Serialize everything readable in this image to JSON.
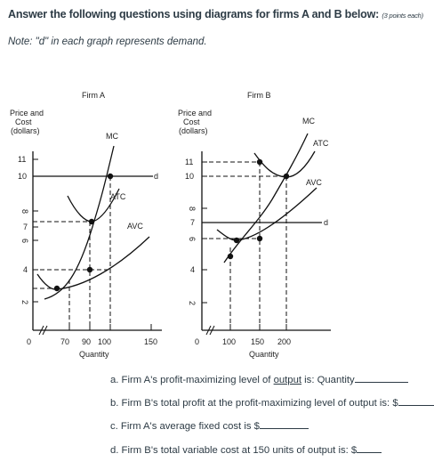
{
  "header": {
    "title": "Answer the following questions using diagrams for firms A and B below:",
    "points": "(3 points each)",
    "note": "Note: \"d\" in each graph represents demand."
  },
  "graphs": {
    "firm_a": {
      "title": "Firm A",
      "ylabel": [
        "Price  and",
        "Cost",
        "(dollars)"
      ],
      "xlabel": "Quantity",
      "origin_label": "0",
      "y_ticks": [
        "11",
        "10",
        "8",
        "7",
        "6",
        "4",
        "2"
      ],
      "x_ticks": [
        "70",
        "90",
        "100",
        "150"
      ],
      "curve_labels": {
        "mc": "MC",
        "atc": "ATC",
        "avc": "AVC",
        "d": "d"
      }
    },
    "firm_b": {
      "title": "Firm B",
      "ylabel": [
        "Price  and",
        "Cost",
        "(dollars)"
      ],
      "xlabel": "Quantity",
      "origin_label": "0",
      "y_ticks": [
        "11",
        "10",
        "8",
        "7",
        "6",
        "4",
        "2"
      ],
      "x_ticks": [
        "100",
        "150",
        "200"
      ],
      "curve_labels": {
        "mc": "MC",
        "atc": "ATC",
        "avc": "AVC",
        "d": "d"
      }
    }
  },
  "chart_data": [
    {
      "type": "line",
      "title": "Firm A",
      "xlabel": "Quantity",
      "ylabel": "Price and Cost (dollars)",
      "series": [
        {
          "name": "MC",
          "x": [
            60,
            70,
            90,
            100,
            110
          ],
          "y": [
            2.2,
            3,
            6,
            10,
            13.5
          ]
        },
        {
          "name": "ATC",
          "x": [
            70,
            90,
            100,
            110
          ],
          "y": [
            9.5,
            7,
            7.2,
            8.5
          ]
        },
        {
          "name": "AVC",
          "x": [
            40,
            70,
            100,
            150
          ],
          "y": [
            3.8,
            3,
            4,
            6.5
          ]
        },
        {
          "name": "d",
          "x": [
            0,
            150
          ],
          "y": [
            10,
            10
          ]
        }
      ]
    },
    {
      "type": "line",
      "title": "Firm B",
      "xlabel": "Quantity",
      "ylabel": "Price and Cost (dollars)",
      "series": [
        {
          "name": "MC",
          "x": [
            100,
            125,
            150,
            200,
            230
          ],
          "y": [
            5,
            6,
            7,
            10,
            13
          ]
        },
        {
          "name": "ATC",
          "x": [
            150,
            175,
            200,
            230
          ],
          "y": [
            11,
            9.6,
            10,
            11.5
          ]
        },
        {
          "name": "AVC",
          "x": [
            100,
            125,
            150,
            230
          ],
          "y": [
            6.2,
            6,
            6.2,
            9
          ]
        },
        {
          "name": "d",
          "x": [
            0,
            230
          ],
          "y": [
            7,
            7
          ]
        }
      ]
    }
  ],
  "questions": {
    "a_prefix": "a. Firm A's profit-maximizing level of ",
    "a_underlined": "output",
    "a_suffix": " is: Quantity",
    "b": "b. Firm B's total profit at the profit-maximizing level of output is: $",
    "c": "c. Firm A's average fixed cost is $",
    "d": "d. Firm B's total variable cost at 150 units of output is: $"
  }
}
